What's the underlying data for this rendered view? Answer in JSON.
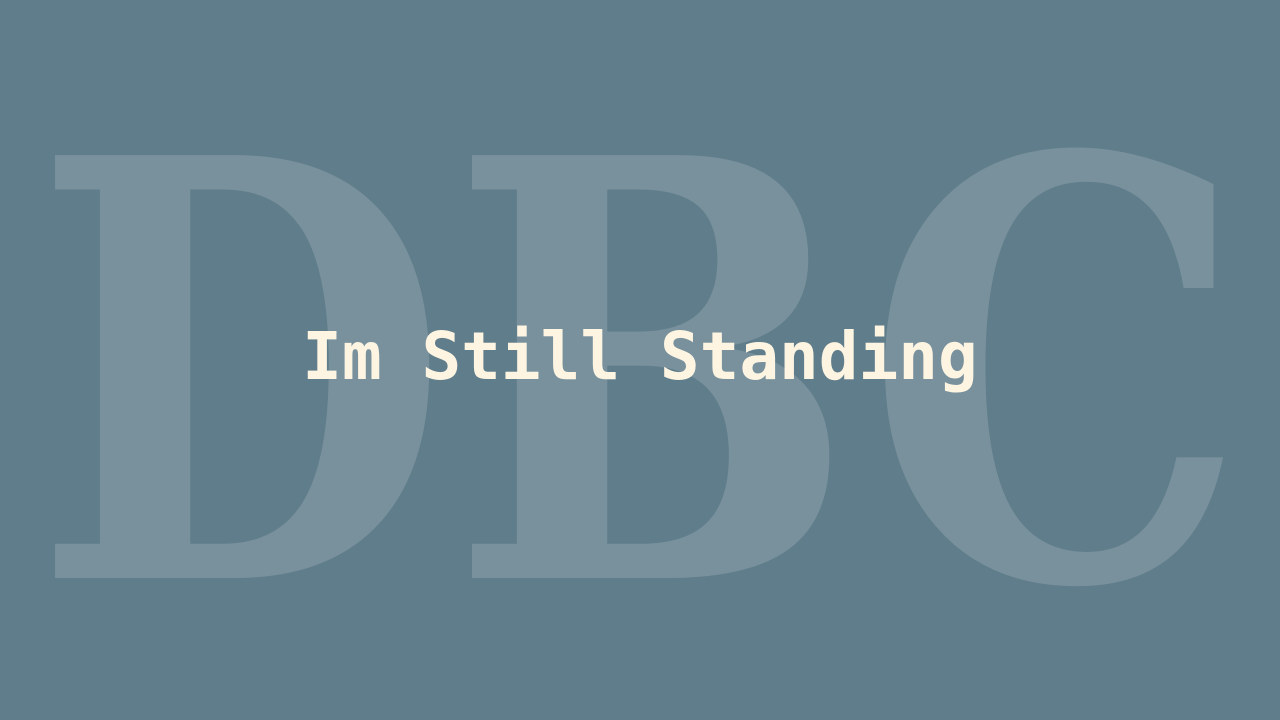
{
  "watermark": {
    "text": "DBC"
  },
  "slide": {
    "title": "Im Still Standing"
  },
  "colors": {
    "background": "#607d8b",
    "title": "#fdf5e2",
    "watermark": "#ffffff"
  }
}
